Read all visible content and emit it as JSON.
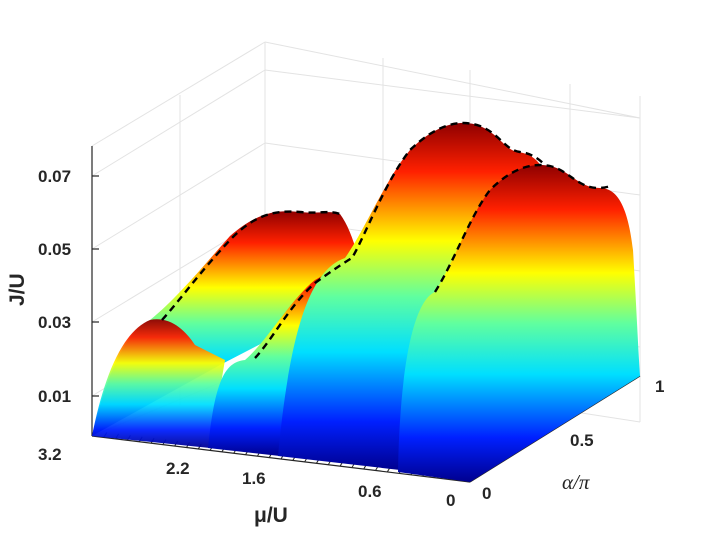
{
  "chart_data": {
    "type": "surface",
    "colormap": "jet",
    "grid": true,
    "xlabel": "μ/U",
    "ylabel": "α/π",
    "zlabel": "J/U",
    "x_ticks": [
      "3.2",
      "2.2",
      "1.6",
      "0.6",
      "0"
    ],
    "y_ticks": [
      "0",
      "0.5",
      "1"
    ],
    "z_ticks": [
      "0.01",
      "0.03",
      "0.05",
      "0.07"
    ],
    "xlim": [
      0,
      3.2
    ],
    "ylim": [
      0,
      1
    ],
    "zlim": [
      0,
      0.08
    ],
    "lobes": [
      {
        "mu_range": [
          2.2,
          3.2
        ],
        "peak_J": [
          0.03,
          0.057
        ]
      },
      {
        "mu_range": [
          1.6,
          2.2
        ],
        "peak_J": [
          0.019,
          0.054
        ]
      },
      {
        "mu_range": [
          0.6,
          1.6
        ],
        "peak_J": [
          0.045,
          0.077
        ]
      },
      {
        "mu_range": [
          0.0,
          0.6
        ],
        "peak_J": [
          0.041,
          0.077
        ]
      }
    ],
    "dashed_ridge_line": true
  }
}
